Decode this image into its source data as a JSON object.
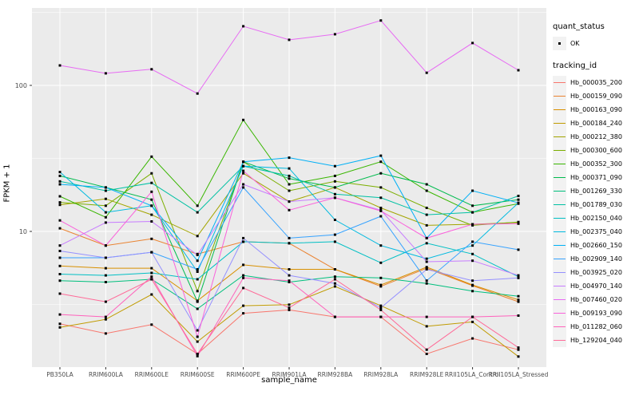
{
  "chart_data": {
    "type": "line",
    "title": "",
    "xlabel": "sample_name",
    "ylabel": "FPKM + 1",
    "y_scale": "log10",
    "grid": true,
    "legend_position": "right",
    "panel_bg": "#EBEBEB",
    "grid_color": "#FFFFFF",
    "axis_text_color": "#4D4D4D",
    "tick_color": "#333333",
    "marker_color": "#000000",
    "legend_key_bg": "#F2F2F2",
    "y_ticks": [
      {
        "label": "10",
        "value": 10
      },
      {
        "label": "100",
        "value": 100
      }
    ],
    "y_minor_ticks": [
      3.1623,
      31.623,
      316.23
    ],
    "ylim": [
      1.26,
      340
    ],
    "categories": [
      "PB350LA",
      "RRIM600LA",
      "RRIM600LE",
      "RRIM600SE",
      "RRIM600PE",
      "RRIM901LA",
      "RRIM928BA",
      "RRIM928LA",
      "RRIM928LE",
      "RRII105LA_Control",
      "RRII105LA_Stressed"
    ],
    "legend": {
      "quant_status_title": "quant_status",
      "quant_status_items": [
        "OK"
      ],
      "tracking_id_title": "tracking_id"
    },
    "series": [
      {
        "name": "Hb_000035_200",
        "color": "#F8766D",
        "values": [
          2.33,
          2.0,
          2.3,
          1.45,
          2.75,
          2.9,
          2.6,
          2.6,
          1.45,
          1.85,
          1.55
        ]
      },
      {
        "name": "Hb_000159_090",
        "color": "#EA8331",
        "values": [
          10.5,
          8.0,
          8.9,
          7.0,
          8.5,
          8.3,
          5.5,
          4.2,
          5.6,
          4.25,
          3.3
        ]
      },
      {
        "name": "Hb_000163_090",
        "color": "#D89000",
        "values": [
          5.8,
          5.6,
          5.6,
          3.35,
          5.9,
          5.5,
          5.5,
          4.3,
          5.7,
          4.3,
          3.4
        ]
      },
      {
        "name": "Hb_000184_240",
        "color": "#C09B00",
        "values": [
          2.2,
          2.5,
          3.7,
          1.76,
          3.1,
          3.15,
          4.2,
          3.1,
          2.24,
          2.4,
          1.39
        ]
      },
      {
        "name": "Hb_000212_380",
        "color": "#A3A500",
        "values": [
          15.2,
          16.7,
          13.0,
          9.3,
          25,
          16,
          20,
          14.5,
          11,
          11.2,
          11.5
        ]
      },
      {
        "name": "Hb_000300_600",
        "color": "#7CAE00",
        "values": [
          15.8,
          15.0,
          25,
          3.9,
          30,
          19,
          22,
          20,
          14.5,
          11,
          11.6
        ]
      },
      {
        "name": "Hb_000352_300",
        "color": "#39B600",
        "values": [
          17.4,
          12.5,
          32.5,
          15,
          58,
          21,
          24,
          30,
          19,
          13.5,
          15.5
        ]
      },
      {
        "name": "Hb_000371_090",
        "color": "#00BB4E",
        "values": [
          24,
          20,
          16.5,
          3.3,
          30,
          23,
          20,
          25,
          21,
          15,
          16.5
        ]
      },
      {
        "name": "Hb_001269_330",
        "color": "#00BF7D",
        "values": [
          4.6,
          4.5,
          4.7,
          2.95,
          5.0,
          4.5,
          4.9,
          4.8,
          4.4,
          3.9,
          3.6
        ]
      },
      {
        "name": "Hb_001789_030",
        "color": "#00C1A3",
        "values": [
          22,
          19,
          21.5,
          13.5,
          28,
          24,
          18,
          17,
          13,
          13.5,
          17.5
        ]
      },
      {
        "name": "Hb_002150_040",
        "color": "#00BFC4",
        "values": [
          5.1,
          5.0,
          5.2,
          4.7,
          8.5,
          8.3,
          8.5,
          6.1,
          8.3,
          7.0,
          4.9
        ]
      },
      {
        "name": "Hb_002375_040",
        "color": "#00BAE0",
        "values": [
          25.5,
          13.5,
          15,
          5.3,
          28,
          27,
          12,
          8,
          6.5,
          8,
          15.7
        ]
      },
      {
        "name": "Hb_002660_150",
        "color": "#00B0F6",
        "values": [
          21,
          20,
          15,
          6.3,
          30,
          32,
          28,
          33,
          9,
          19,
          15.7
        ]
      },
      {
        "name": "Hb_002909_140",
        "color": "#35A2FF",
        "values": [
          6.6,
          6.6,
          7.2,
          5.5,
          20,
          9,
          9.5,
          12.7,
          4.6,
          8.5,
          7.5
        ]
      },
      {
        "name": "Hb_003925_020",
        "color": "#9590FF",
        "values": [
          7.35,
          6.6,
          7.2,
          2.1,
          9.0,
          5.0,
          4.4,
          3.0,
          5.5,
          4.6,
          4.8
        ]
      },
      {
        "name": "Hb_004970_140",
        "color": "#C77CFF",
        "values": [
          8.0,
          11.5,
          11.7,
          6.9,
          21,
          16,
          17,
          14,
          6.2,
          6.3,
          5.0
        ]
      },
      {
        "name": "Hb_007460_020",
        "color": "#E76BF3",
        "values": [
          137,
          121,
          129,
          88,
          254,
          205,
          224,
          278,
          122,
          195,
          127
        ]
      },
      {
        "name": "Hb_009193_090",
        "color": "#FA62DB",
        "values": [
          11.9,
          8.0,
          18.7,
          1.9,
          26,
          14,
          17,
          13.8,
          9.0,
          11.2,
          11.3
        ]
      },
      {
        "name": "Hb_011282_060",
        "color": "#FF62BC",
        "values": [
          2.7,
          2.6,
          4.9,
          1.4,
          4.8,
          4.6,
          2.6,
          2.6,
          2.6,
          2.6,
          2.65
        ]
      },
      {
        "name": "Hb_129204_040",
        "color": "#FF6A98",
        "values": [
          3.75,
          3.3,
          4.7,
          1.45,
          4.1,
          3.0,
          4.7,
          2.9,
          1.55,
          2.6,
          1.6
        ]
      }
    ]
  }
}
